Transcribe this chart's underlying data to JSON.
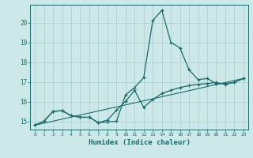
{
  "xlabel": "Humidex (Indice chaleur)",
  "bg_color": "#cce8e8",
  "grid_color": "#aacccc",
  "line_color": "#1a6b6b",
  "xlim": [
    -0.5,
    23.5
  ],
  "ylim": [
    14.6,
    20.9
  ],
  "xticks": [
    0,
    1,
    2,
    3,
    4,
    5,
    6,
    7,
    8,
    9,
    10,
    11,
    12,
    13,
    14,
    15,
    16,
    17,
    18,
    19,
    20,
    21,
    22,
    23
  ],
  "yticks": [
    15,
    16,
    17,
    18,
    19,
    20
  ],
  "line1_x": [
    0,
    1,
    2,
    3,
    4,
    5,
    6,
    7,
    8,
    9,
    10,
    11,
    12,
    13,
    14,
    15,
    16,
    17,
    18,
    19,
    20,
    21,
    22,
    23
  ],
  "line1_y": [
    14.82,
    15.02,
    15.52,
    15.55,
    15.3,
    15.22,
    15.22,
    14.95,
    14.98,
    15.02,
    16.35,
    16.72,
    17.22,
    20.1,
    20.62,
    19.0,
    18.72,
    17.62,
    17.12,
    17.18,
    16.92,
    16.92,
    16.98,
    17.18
  ],
  "line2_x": [
    0,
    1,
    2,
    3,
    4,
    5,
    6,
    7,
    8,
    9,
    10,
    11,
    12,
    13,
    14,
    15,
    16,
    17,
    18,
    19,
    20,
    21,
    22,
    23
  ],
  "line2_y": [
    14.82,
    15.02,
    15.52,
    15.55,
    15.3,
    15.22,
    15.22,
    14.95,
    15.08,
    15.58,
    16.02,
    16.58,
    15.72,
    16.12,
    16.42,
    16.58,
    16.72,
    16.82,
    16.88,
    16.92,
    16.98,
    16.88,
    16.98,
    17.18
  ],
  "line3_x": [
    0,
    23
  ],
  "line3_y": [
    14.82,
    17.18
  ]
}
